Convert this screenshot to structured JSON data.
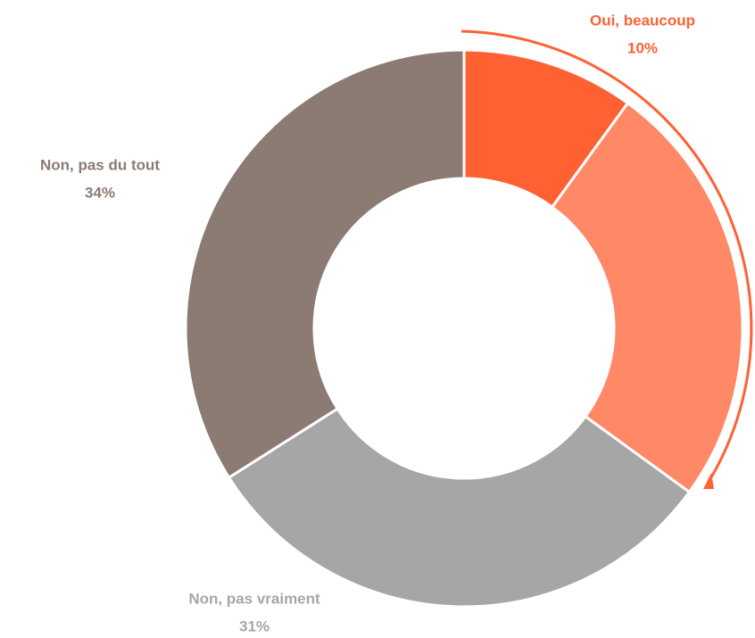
{
  "chart_data": {
    "type": "donut",
    "categories": [
      "Oui, beaucoup",
      null,
      "Non, pas vraiment",
      "Non, pas du tout"
    ],
    "values": [
      10,
      25,
      31,
      34
    ],
    "value_labels": [
      "10%",
      null,
      "31%",
      "34%"
    ],
    "colors": [
      "#FF6133",
      "#FF8866",
      "#A6A6A6",
      "#8B7B72"
    ]
  }
}
